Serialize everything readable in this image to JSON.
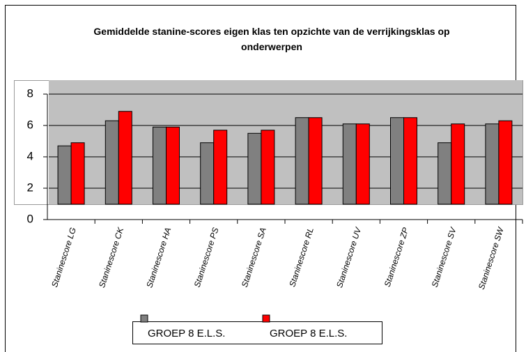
{
  "chart_data": {
    "type": "bar",
    "title": "Gemiddelde stanine-scores eigen klas ten opzichte van de verrijkingsklas op onderwerpen",
    "categories": [
      "Staninescore LG",
      "Staninescore CK",
      "Staninescore HA",
      "Staninescore PS",
      "Staninescore SA",
      "Staninescore RL",
      "Staninescore UV",
      "Staninescore ZP",
      "Staninescore SV",
      "Staninescore SW"
    ],
    "series": [
      {
        "name": "GROEP 8 E.L.S.",
        "color": "#808080",
        "values": [
          4.7,
          6.3,
          5.9,
          4.9,
          5.5,
          6.5,
          6.1,
          6.5,
          4.9,
          6.1
        ]
      },
      {
        "name": "GROEP 8 E.L.S.",
        "color": "#ff0000",
        "values": [
          4.9,
          6.9,
          5.9,
          5.7,
          5.7,
          6.5,
          6.1,
          6.5,
          6.1,
          6.3
        ]
      }
    ],
    "ylim": [
      0,
      8
    ],
    "yticks": [
      0,
      2,
      4,
      6,
      8
    ],
    "grid": true,
    "legend": "bottom"
  }
}
